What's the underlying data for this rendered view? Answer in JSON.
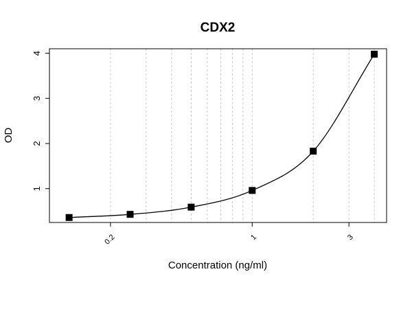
{
  "chart_data": {
    "type": "scatter",
    "title": "CDX2",
    "xlabel": "Concentration (ng/ml)",
    "ylabel": "OD",
    "x_scale": "log",
    "xlim": [
      0.1,
      4.6
    ],
    "ylim": [
      0.25,
      4.1
    ],
    "x_ticks": [
      {
        "value": 0.2,
        "label": "0.2"
      },
      {
        "value": 1,
        "label": "1"
      },
      {
        "value": 3,
        "label": "3"
      }
    ],
    "y_ticks": [
      {
        "value": 1,
        "label": "1"
      },
      {
        "value": 2,
        "label": "2"
      },
      {
        "value": 3,
        "label": "3"
      },
      {
        "value": 4,
        "label": "4"
      }
    ],
    "grid_x": [
      0.2,
      0.3,
      0.4,
      0.5,
      0.6,
      0.7,
      0.8,
      0.9,
      1,
      2,
      3,
      4
    ],
    "grid": true,
    "points": {
      "x": [
        0.125,
        0.25,
        0.5,
        1,
        2,
        4
      ],
      "y": [
        0.36,
        0.43,
        0.59,
        0.96,
        1.83,
        3.98
      ]
    },
    "fit_curve": true
  }
}
